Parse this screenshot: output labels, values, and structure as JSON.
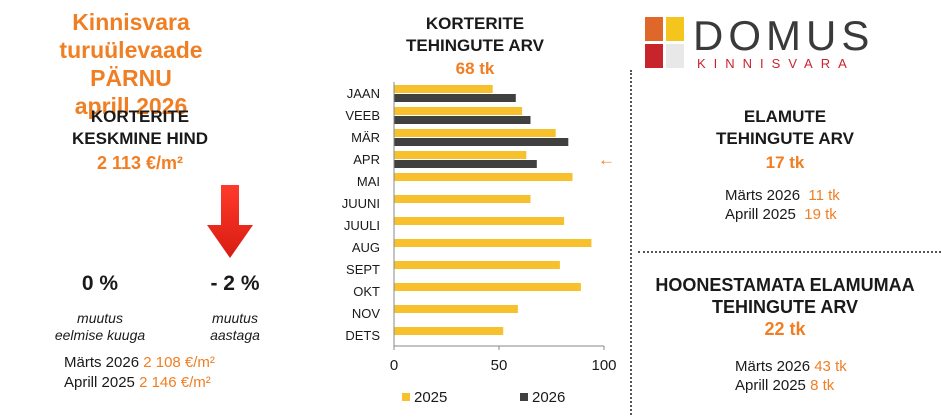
{
  "header": {
    "line1": "Kinnisvara turuülevaade",
    "line2": "PÄRNU",
    "line3": "aprill 2026"
  },
  "avg_price": {
    "title_line1": "KORTERITE",
    "title_line2": "KESKMINE HIND",
    "value": "2 113 €/m²",
    "change_month_value": "0 %",
    "change_month_label_line1": "muutus",
    "change_month_label_line2": "eelmise kuuga",
    "change_year_value": "- 2 %",
    "change_year_label_line1": "muutus",
    "change_year_label_line2": "aastaga",
    "compare": [
      {
        "label": "Märts 2026",
        "value": "2 108 €/m²"
      },
      {
        "label": "Aprill 2025",
        "value": "2 146 €/m²"
      }
    ],
    "arrow_color": "#e8201c"
  },
  "apartments": {
    "title_line1": "KORTERITE",
    "title_line2": "TEHINGUTE ARV",
    "value": "68 tk"
  },
  "logo": {
    "name": "DOMUS",
    "subtitle": "KINNISVARA",
    "colors": [
      "#e0672a",
      "#f4c51c",
      "#c8242c",
      "#e8e8e8"
    ]
  },
  "houses": {
    "title_line1": "ELAMUTE",
    "title_line2": "TEHINGUTE ARV",
    "value": "17 tk",
    "compare": [
      {
        "label": "Märts 2026",
        "value": "11 tk"
      },
      {
        "label": "Aprill 2025",
        "value": "19 tk"
      }
    ]
  },
  "land": {
    "title_line1": "HOONESTAMATA ELAMUMAA",
    "title_line2": "TEHINGUTE ARV",
    "value": "22 tk",
    "compare": [
      {
        "label": "Märts 2026",
        "value": "43 tk"
      },
      {
        "label": "Aprill 2025",
        "value": "8 tk"
      }
    ]
  },
  "chart_data": {
    "type": "bar",
    "orientation": "horizontal",
    "categories": [
      "JAAN",
      "VEEB",
      "MÄR",
      "APR",
      "MAI",
      "JUUNI",
      "JUULI",
      "AUG",
      "SEPT",
      "OKT",
      "NOV",
      "DETS"
    ],
    "series": [
      {
        "name": "2025",
        "color": "#f6c12c",
        "values": [
          47,
          61,
          77,
          63,
          85,
          65,
          81,
          94,
          79,
          89,
          59,
          52
        ]
      },
      {
        "name": "2026",
        "color": "#404040",
        "values": [
          58,
          65,
          83,
          68,
          null,
          null,
          null,
          null,
          null,
          null,
          null,
          null
        ]
      }
    ],
    "xlim": [
      0,
      100
    ],
    "xticks": [
      "0",
      "50",
      "100"
    ],
    "legend": "bottom",
    "grid": false,
    "marker": {
      "category": "APR",
      "symbol": "←",
      "color": "#f07f24"
    }
  }
}
